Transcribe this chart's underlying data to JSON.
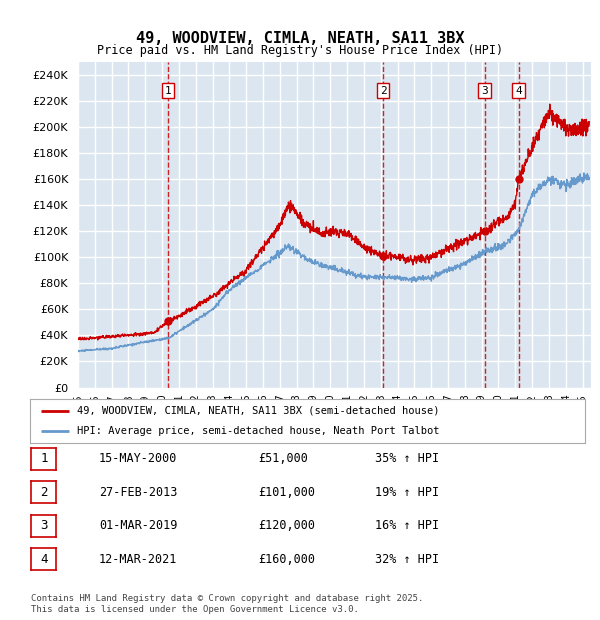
{
  "title": "49, WOODVIEW, CIMLA, NEATH, SA11 3BX",
  "subtitle": "Price paid vs. HM Land Registry's House Price Index (HPI)",
  "ylim": [
    0,
    250000
  ],
  "yticks": [
    0,
    20000,
    40000,
    60000,
    80000,
    100000,
    120000,
    140000,
    160000,
    180000,
    200000,
    220000,
    240000
  ],
  "xlim_start": 1995.0,
  "xlim_end": 2025.5,
  "background_color": "#dce6f0",
  "grid_color": "#ffffff",
  "sale_color": "#cc0000",
  "hpi_color": "#6699cc",
  "sale_label": "49, WOODVIEW, CIMLA, NEATH, SA11 3BX (semi-detached house)",
  "hpi_label": "HPI: Average price, semi-detached house, Neath Port Talbot",
  "transactions": [
    {
      "num": 1,
      "date": "15-MAY-2000",
      "price": 51000,
      "pct": "35%",
      "year": 2000.37
    },
    {
      "num": 2,
      "date": "27-FEB-2013",
      "price": 101000,
      "pct": "19%",
      "year": 2013.15
    },
    {
      "num": 3,
      "date": "01-MAR-2019",
      "price": 120000,
      "pct": "16%",
      "year": 2019.17
    },
    {
      "num": 4,
      "date": "12-MAR-2021",
      "price": 160000,
      "pct": "32%",
      "year": 2021.19
    }
  ],
  "footer": "Contains HM Land Registry data © Crown copyright and database right 2025.\nThis data is licensed under the Open Government Licence v3.0."
}
